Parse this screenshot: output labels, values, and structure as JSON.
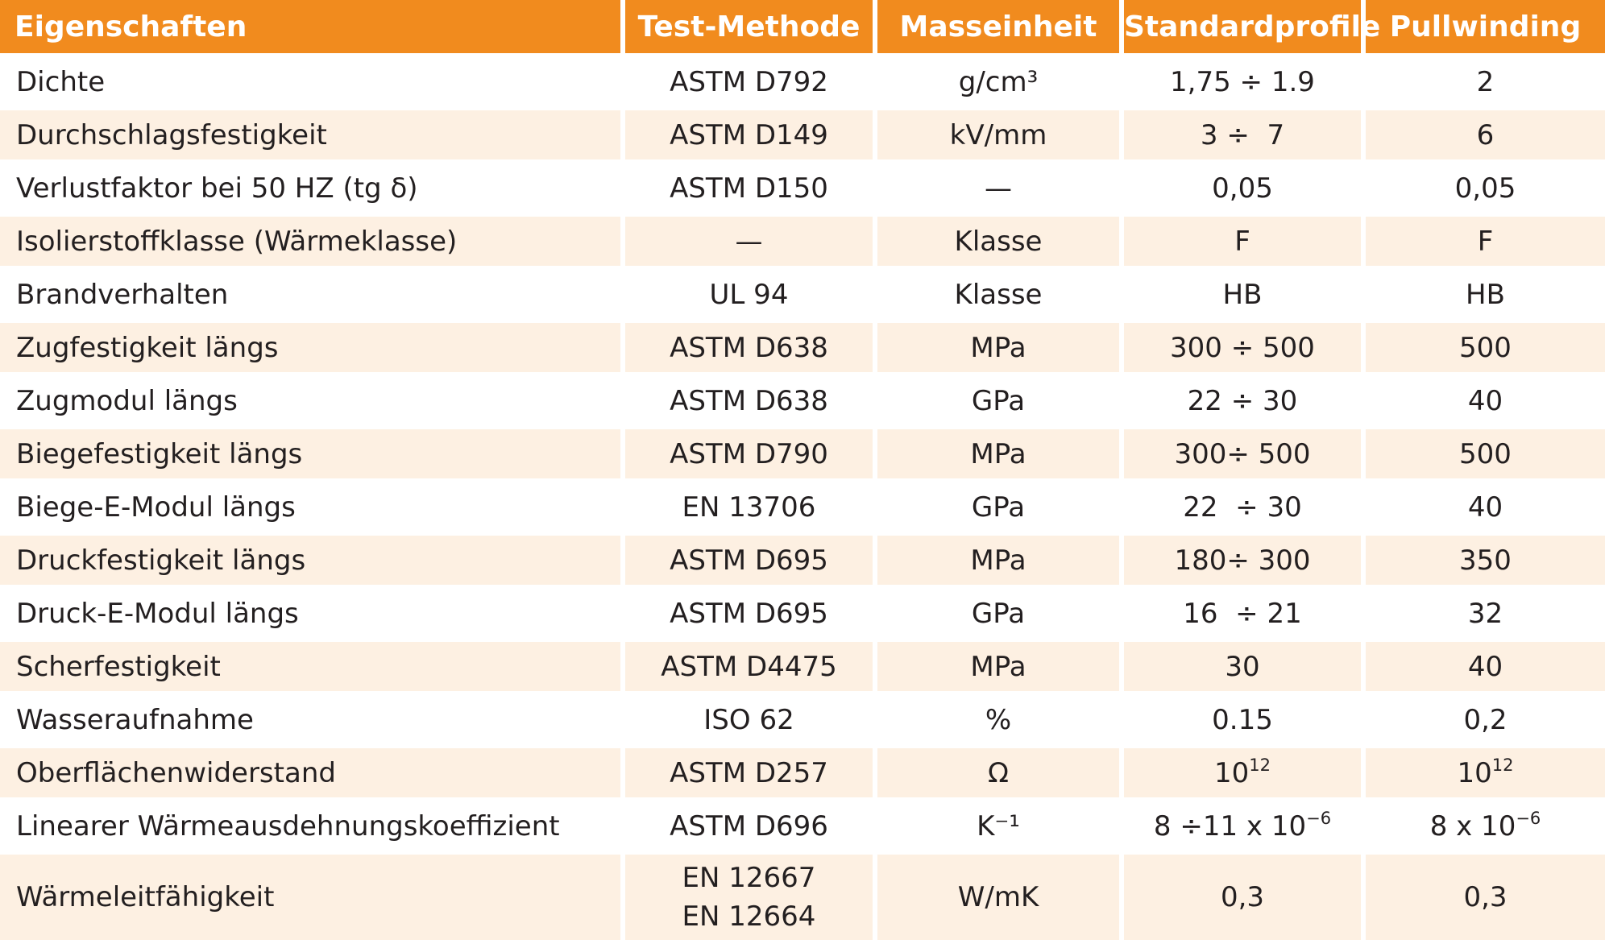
{
  "headers": {
    "property": "Eigenschaften",
    "method": "Test-Methode",
    "unit": "Masseinheit",
    "standard": "Standardprofile",
    "pullwinding": "Pullwinding"
  },
  "colors": {
    "header_bg": "#f18b1e",
    "header_text": "#ffffff",
    "alt_row_bg": "#fdf0e2",
    "text": "#231f20"
  },
  "rows": [
    {
      "property": "Dichte",
      "method": "ASTM D792",
      "unit": "g/cm³",
      "standard": "1,75 ÷ 1.9",
      "pullwinding": "2"
    },
    {
      "property": "Durchschlagsfestigkeit",
      "method": "ASTM D149",
      "unit": "kV/mm",
      "standard": "3 ÷  7",
      "pullwinding": "6"
    },
    {
      "property": "Verlustfaktor bei 50 HZ (tg δ)",
      "method": "ASTM D150",
      "unit": "—",
      "standard": "0,05",
      "pullwinding": "0,05"
    },
    {
      "property": "Isolierstoffklasse (Wärmeklasse)",
      "method": "—",
      "unit": "Klasse",
      "standard": "F",
      "pullwinding": "F"
    },
    {
      "property": "Brandverhalten",
      "method": "UL 94",
      "unit": "Klasse",
      "standard": "HB",
      "pullwinding": "HB"
    },
    {
      "property": "Zugfestigkeit längs",
      "method": "ASTM D638",
      "unit": "MPa",
      "standard": "300 ÷ 500",
      "pullwinding": "500"
    },
    {
      "property": "Zugmodul längs",
      "method": "ASTM D638",
      "unit": "GPa",
      "standard": "22 ÷ 30",
      "pullwinding": "40"
    },
    {
      "property": "Biegefestigkeit längs",
      "method": "ASTM D790",
      "unit": "MPa",
      "standard": "300÷ 500",
      "pullwinding": "500"
    },
    {
      "property": "Biege-E-Modul längs",
      "method": "EN 13706",
      "unit": "GPa",
      "standard": "22  ÷ 30",
      "pullwinding": "40"
    },
    {
      "property": "Druckfestigkeit längs",
      "method": "ASTM D695",
      "unit": "MPa",
      "standard": "180÷ 300",
      "pullwinding": "350"
    },
    {
      "property": "Druck-E-Modul längs",
      "method": "ASTM D695",
      "unit": "GPa",
      "standard": "16  ÷ 21",
      "pullwinding": "32"
    },
    {
      "property": "Scherfestigkeit",
      "method": "ASTM D4475",
      "unit": "MPa",
      "standard": "30",
      "pullwinding": "40"
    },
    {
      "property": "Wasseraufnahme",
      "method": "ISO 62",
      "unit": "%",
      "standard": "0.15",
      "pullwinding": "0,2"
    },
    {
      "property": "Oberflächenwiderstand",
      "method": "ASTM D257",
      "unit": "Ω",
      "standard_base": "10",
      "standard_exp": "12",
      "pullwinding_base": "10",
      "pullwinding_exp": "12"
    },
    {
      "property": "Linearer Wärmeausdehnungskoeffizient",
      "method": "ASTM D696",
      "unit": "K⁻¹",
      "standard_base": "8 ÷11 x 10",
      "standard_exp": "−6",
      "pullwinding_base": "8 x 10",
      "pullwinding_exp": "−6"
    },
    {
      "property": "Wärmeleitfähigkeit",
      "method_line1": "EN 12667",
      "method_line2": "EN 12664",
      "unit": "W/mK",
      "standard": "0,3",
      "pullwinding": "0,3"
    }
  ]
}
